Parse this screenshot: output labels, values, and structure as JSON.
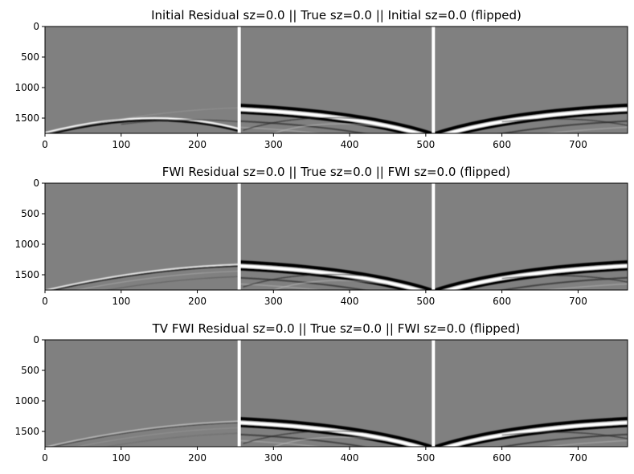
{
  "chart_data": [
    {
      "type": "heatmap",
      "title": "Initial Residual sz=0.0   ||   True sz=0.0   ||   Initial sz=0.0 (flipped)",
      "xlim": [
        0,
        765
      ],
      "ylim": [
        1750,
        0
      ],
      "xticks": [
        0,
        100,
        200,
        300,
        400,
        500,
        600,
        700
      ],
      "yticks": [
        0,
        500,
        1000,
        1500
      ],
      "separators_x": [
        255,
        510
      ],
      "colormap": "gray",
      "residual_strength": 1.0
    },
    {
      "type": "heatmap",
      "title": "FWI Residual sz=0.0   ||   True sz=0.0   ||   FWI sz=0.0 (flipped)",
      "xlim": [
        0,
        765
      ],
      "ylim": [
        1750,
        0
      ],
      "xticks": [
        0,
        100,
        200,
        300,
        400,
        500,
        600,
        700
      ],
      "yticks": [
        0,
        500,
        1000,
        1500
      ],
      "separators_x": [
        255,
        510
      ],
      "colormap": "gray",
      "residual_strength": 0.6
    },
    {
      "type": "heatmap",
      "title": "TV FWI Residual sz=0.0   ||   True sz=0.0   ||   FWI sz=0.0 (flipped)",
      "xlim": [
        0,
        765
      ],
      "ylim": [
        1750,
        0
      ],
      "xticks": [
        0,
        100,
        200,
        300,
        400,
        500,
        600,
        700
      ],
      "yticks": [
        0,
        500,
        1000,
        1500
      ],
      "separators_x": [
        255,
        510
      ],
      "colormap": "gray",
      "residual_strength": 0.3
    }
  ]
}
